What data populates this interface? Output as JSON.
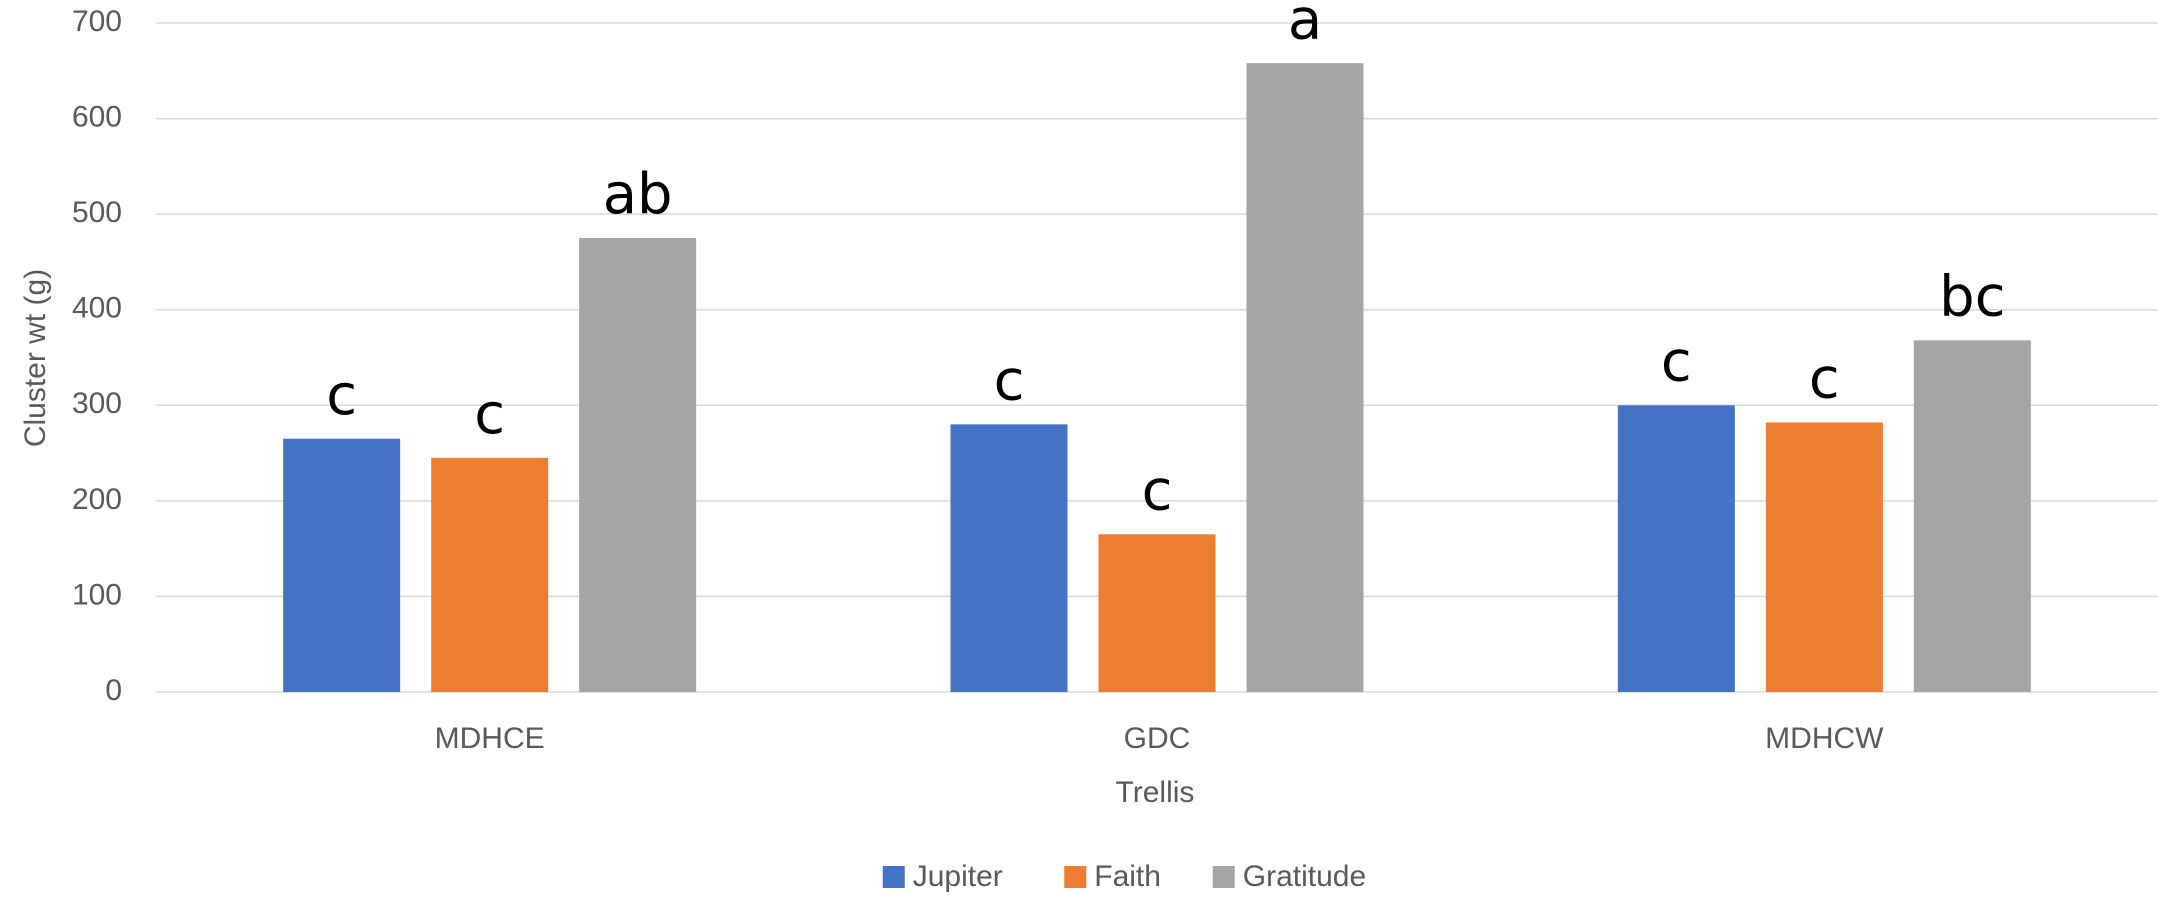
{
  "chart_data": {
    "type": "bar",
    "x_label": "Trellis",
    "y_label": "Cluster wt  (g)",
    "categories": [
      "MDHCE",
      "GDC",
      "MDHCW"
    ],
    "series": [
      {
        "name": "Jupiter",
        "color": "#4472c4",
        "values": [
          265,
          280,
          300
        ],
        "annotations": [
          "c",
          "c",
          "c"
        ]
      },
      {
        "name": "Faith",
        "color": "#ed7d31",
        "values": [
          245,
          165,
          282
        ],
        "annotations": [
          "c",
          "c",
          "c"
        ]
      },
      {
        "name": "Gratitude",
        "color": "#a5a5a5",
        "values": [
          475,
          658,
          368
        ],
        "annotations": [
          "ab",
          "a",
          "bc"
        ]
      }
    ],
    "ylim": [
      0,
      700
    ],
    "yticks": [
      0,
      100,
      200,
      300,
      400,
      500,
      600,
      700
    ],
    "grid": true,
    "legend": "bottom"
  }
}
